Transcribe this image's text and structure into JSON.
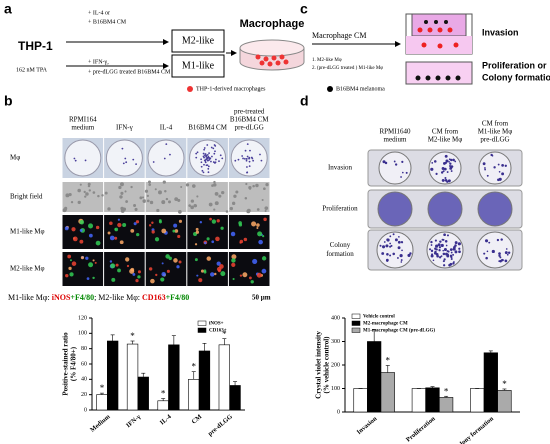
{
  "panel_a": {
    "label": "a",
    "cell": "THP-1",
    "treatment": "162 nM TPA",
    "upper_arrow": [
      "+ IL-4  or",
      "+ B16BM4 CM"
    ],
    "lower_arrow": [
      "+ IFN-γ,",
      "+ pre-dLGG treated B16BM4 CM"
    ],
    "box_top": "M2-like",
    "box_bottom": "M1-like",
    "product": "Macrophage",
    "legend": [
      "THP-1-derived macrophages",
      "B16BM4 melanoma"
    ]
  },
  "panel_c": {
    "label": "c",
    "source": "Macrophage CM",
    "items": [
      "1. M2-like Mφ",
      "2. (pre-dLGG treated ) M1-like Mφ"
    ],
    "top": "Invasion",
    "bottom": [
      "Proliferation or",
      "Colony formation"
    ]
  },
  "panel_b": {
    "label": "b",
    "columns": [
      [
        "RPMI164",
        "medium"
      ],
      [
        "IFN-γ"
      ],
      [
        "IL-4"
      ],
      [
        "B16BM4 CM"
      ],
      [
        "pre-treated",
        "B16BM4 CM",
        "pre-dLGG"
      ]
    ],
    "rows": [
      "Mφ",
      "Bright field",
      "M1-like Mφ",
      "M2-like Mφ"
    ],
    "caption": [
      "M1-like Mφ: ",
      "iNOS",
      "+F4/80",
      "; M2-like Mφ: ",
      "CD163",
      "+F4/80"
    ],
    "scale": "50 μm"
  },
  "panel_d": {
    "label": "d",
    "columns": [
      [
        "RPMI1640",
        "medium"
      ],
      [
        "CM from",
        "M2-like Mφ"
      ],
      [
        "CM from",
        "M1-like Mφ",
        "pre-dLGG"
      ]
    ],
    "rows": [
      [
        "Invasion"
      ],
      [
        "Proliferation"
      ],
      [
        "Colony",
        "formation"
      ]
    ]
  },
  "chart_data": [
    {
      "type": "bar",
      "y_label": [
        "Positive-stained ratio",
        "(% F4/80+)"
      ],
      "categories": [
        "Medium",
        "IFN-γ",
        "IL-4",
        "CM",
        "pre-dLGG"
      ],
      "series": [
        {
          "name": "iNOS+",
          "color": "#ffffff",
          "values": [
            20,
            86,
            12,
            40,
            85
          ],
          "errors": [
            2,
            4,
            3,
            10,
            8
          ],
          "marks": [
            "*",
            "*",
            "*",
            "*",
            "*"
          ]
        },
        {
          "name": "CD163+",
          "color": "#000000",
          "values": [
            90,
            43,
            85,
            77,
            32
          ],
          "errors": [
            8,
            5,
            12,
            10,
            5
          ],
          "marks": [
            null,
            null,
            null,
            null,
            null
          ]
        }
      ],
      "ylim": [
        0,
        120
      ],
      "yticks": [
        0,
        20,
        40,
        60,
        80,
        100,
        120
      ]
    },
    {
      "type": "bar",
      "y_label": [
        "Crystal violet intensity",
        "(% vehicle control)"
      ],
      "categories": [
        "Invasion",
        "Proliferation",
        "Colony formation"
      ],
      "series": [
        {
          "name": "Vehicle control",
          "color": "#ffffff",
          "values": [
            100,
            100,
            100
          ],
          "errors": [
            0,
            0,
            0
          ],
          "marks": [
            null,
            null,
            null
          ]
        },
        {
          "name": "M2-macrophage CM",
          "color": "#000000",
          "values": [
            300,
            103,
            252
          ],
          "errors": [
            50,
            5,
            8
          ],
          "marks": [
            null,
            null,
            null
          ]
        },
        {
          "name": "M1-macrophage CM (pre-dLGG)",
          "color": "#aaaaaa",
          "values": [
            168,
            62,
            92
          ],
          "errors": [
            30,
            5,
            6
          ],
          "marks": [
            "*",
            "*",
            "*"
          ]
        }
      ],
      "ylim": [
        0,
        400
      ],
      "yticks": [
        0,
        100,
        200,
        300,
        400
      ]
    }
  ]
}
